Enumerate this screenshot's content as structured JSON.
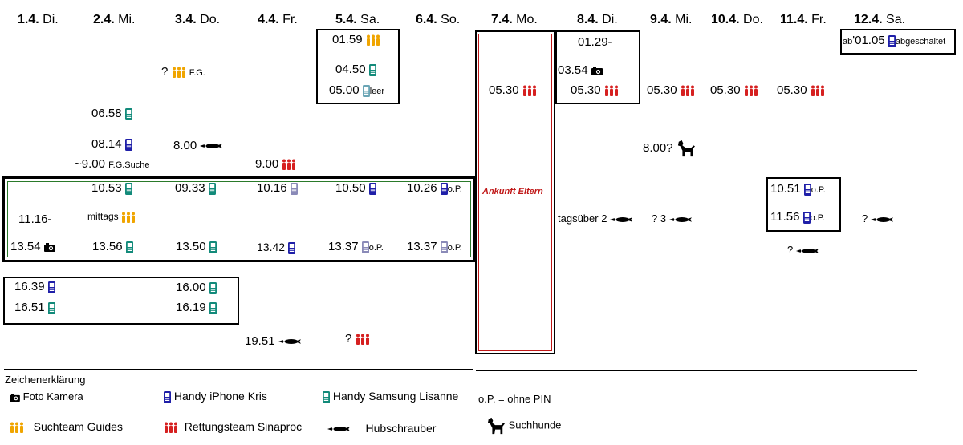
{
  "days": [
    {
      "num": "1.4.",
      "name": "Di."
    },
    {
      "num": "2.4.",
      "name": "Mi."
    },
    {
      "num": "3.4.",
      "name": "Do."
    },
    {
      "num": "4.4.",
      "name": "Fr."
    },
    {
      "num": "5.4.",
      "name": "Sa."
    },
    {
      "num": "6.4.",
      "name": "So."
    },
    {
      "num": "7.4.",
      "name": "Mo."
    },
    {
      "num": "8.4.",
      "name": "Di."
    },
    {
      "num": "9.4.",
      "name": "Mi."
    },
    {
      "num": "10.4.",
      "name": "Do."
    },
    {
      "num": "11.4.",
      "name": "Fr."
    },
    {
      "num": "12.4.",
      "name": "Sa."
    }
  ],
  "entries": {
    "e1": "01.59",
    "e2": "?",
    "e2n": "F.G.",
    "e3": "04.50",
    "e4": "05.00",
    "e4n": "leer",
    "e5": "06.58",
    "e6": "08.14",
    "e7": "8.00",
    "e8": "~9.00",
    "e8n": "F.G.Suche",
    "e9": "9.00",
    "e10": "10.53",
    "e11": "09.33",
    "e12": "10.16",
    "e13": "10.50",
    "e14": "10.26",
    "e14n": "o.P.",
    "e15": "11.16-",
    "e16": "mittags",
    "e17": "13.54",
    "e18": "13.56",
    "e19": "13.50",
    "e20": "13.42",
    "e21": "13.37",
    "e21n": "o.P.",
    "e22": "13.37",
    "e22n": "o.P.",
    "e23": "16.39",
    "e24": "16.51",
    "e25": "16.00",
    "e26": "16.19",
    "e27": "19.51",
    "e28": "?",
    "e29": "05.30",
    "e30": "01.29-",
    "e31": "03.54",
    "e32": "05.30",
    "e33": "05.30",
    "e34": "05.30",
    "e35": "05.30",
    "e36": "ab",
    "e36b": "'01.05",
    "e36n": "abgeschaltet",
    "e37": "8.00?",
    "e38": "tagsüber 2",
    "e39": "? 3",
    "e40": "10.51",
    "e40n": "o.P.",
    "e41": "11.56",
    "e41n": "o.P.",
    "e42": "?",
    "e43": "?"
  },
  "ankunft": "Ankunft Eltern",
  "legend": {
    "title": "Zeichenerklärung",
    "camera": "Foto Kamera",
    "iphone": "Handy iPhone Kris",
    "samsung": "Handy Samsung Lisanne",
    "guides": "Suchteam Guides",
    "rescue": "Rettungsteam Sinaproc",
    "heli": "Hubschrauber",
    "op": "o.P. = ohne PIN",
    "dogs": "Suchhunde"
  },
  "colors": {
    "guides": "#f0a500",
    "rescue": "#d62020",
    "iphone": "#1f1fa8",
    "samsung": "#128a7a",
    "ankunft": "#c01818",
    "greenbox": "#2a7a2a"
  }
}
